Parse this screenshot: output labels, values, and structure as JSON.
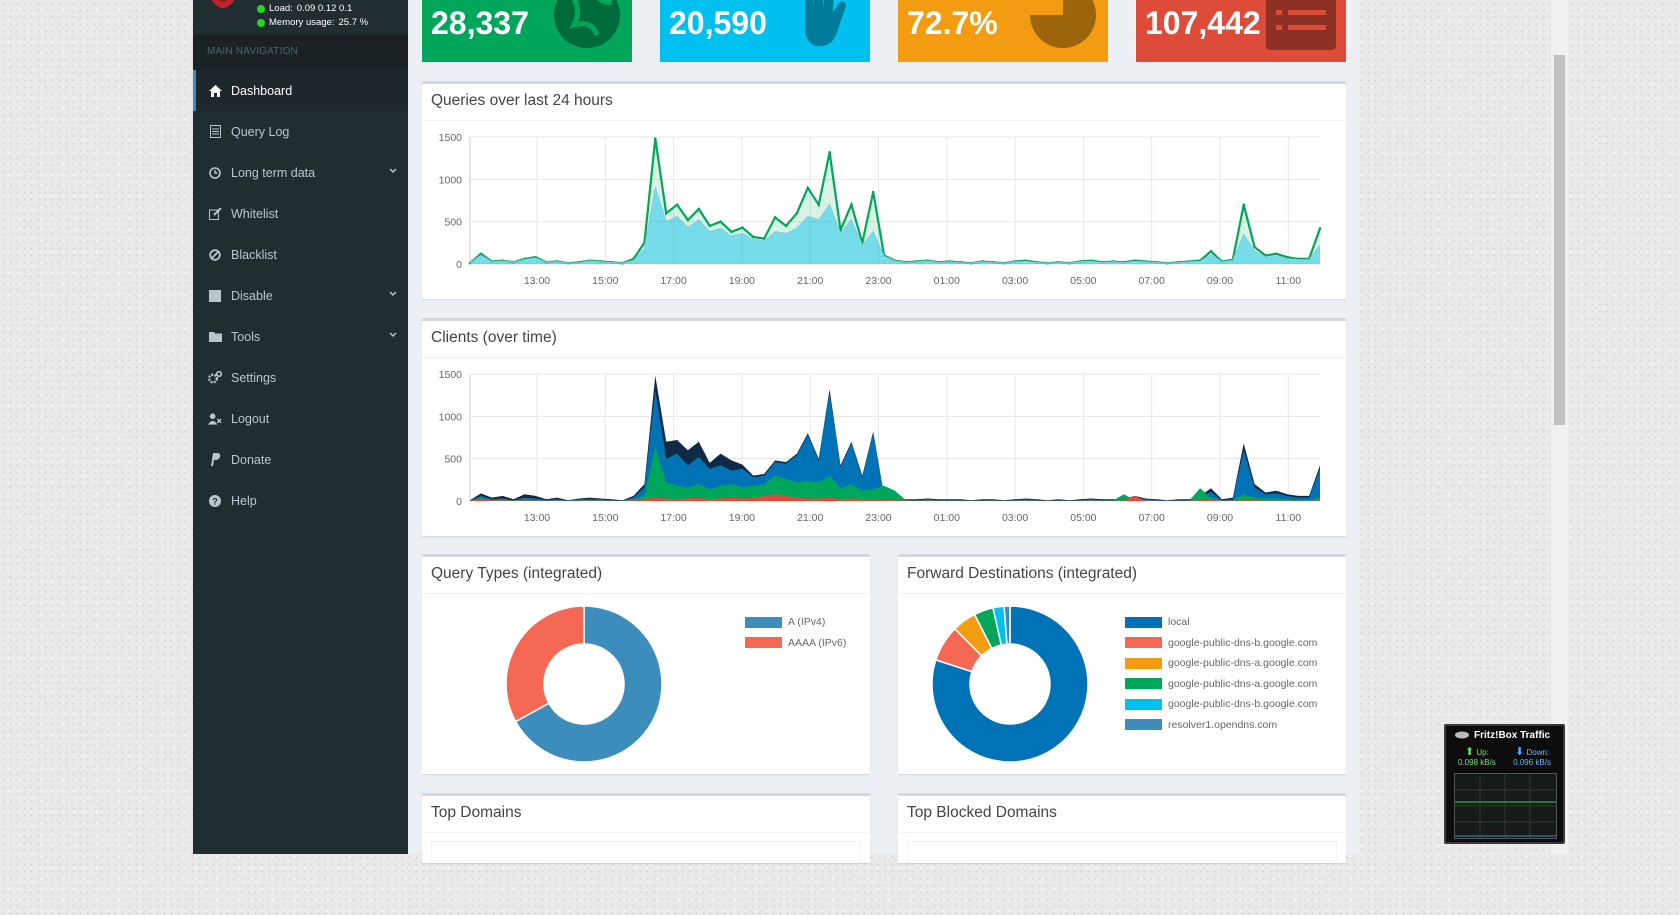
{
  "sidebar": {
    "load_label": "Load:",
    "load_values": "0.09  0.12  0.1",
    "memory_label": "Memory usage:",
    "memory_value": "25.7 %",
    "nav_header": "MAIN NAVIGATION",
    "items": [
      {
        "label": "Dashboard",
        "icon": "home-icon"
      },
      {
        "label": "Query Log",
        "icon": "file-icon"
      },
      {
        "label": "Long term data",
        "icon": "clock-icon"
      },
      {
        "label": "Whitelist",
        "icon": "edit-icon"
      },
      {
        "label": "Blacklist",
        "icon": "ban-icon"
      },
      {
        "label": "Disable",
        "icon": "stop-icon"
      },
      {
        "label": "Tools",
        "icon": "folder-icon"
      },
      {
        "label": "Settings",
        "icon": "gears-icon"
      },
      {
        "label": "Logout",
        "icon": "user-times-icon"
      },
      {
        "label": "Donate",
        "icon": "paypal-icon"
      },
      {
        "label": "Help",
        "icon": "question-icon"
      }
    ]
  },
  "stats": [
    {
      "value": "28,337",
      "color": "#00a65a",
      "icon": "globe-icon"
    },
    {
      "value": "20,590",
      "color": "#00c0ef",
      "icon": "hand-icon"
    },
    {
      "value": "72.7%",
      "color": "#f39c12",
      "icon": "pie-icon"
    },
    {
      "value": "107,442",
      "color": "#dd4b39",
      "icon": "list-icon"
    }
  ],
  "panels": {
    "queries_title": "Queries over last 24 hours",
    "clients_title": "Clients (over time)",
    "query_types_title": "Query Types (integrated)",
    "forward_title": "Forward Destinations (integrated)",
    "top_domains_title": "Top Domains",
    "top_blocked_title": "Top Blocked Domains"
  },
  "fritz": {
    "title": "Fritz!Box Traffic",
    "up_label": "Up:",
    "up_value": "0.098 kB/s",
    "down_label": "Down:",
    "down_value": "0.096 kB/s"
  },
  "chart_data": [
    {
      "type": "area",
      "ylim": [
        0,
        1500
      ],
      "yticks": [
        "0",
        "500",
        "1000",
        "1500"
      ],
      "xticks": [
        "13:00",
        "15:00",
        "17:00",
        "19:00",
        "21:00",
        "23:00",
        "01:00",
        "03:00",
        "05:00",
        "07:00",
        "09:00",
        "11:00"
      ],
      "series": [
        {
          "color": "#00a65a",
          "values": [
            10,
            120,
            30,
            40,
            20,
            60,
            80,
            20,
            30,
            10,
            20,
            40,
            30,
            20,
            10,
            60,
            250,
            1480,
            600,
            700,
            520,
            650,
            450,
            500,
            380,
            430,
            320,
            300,
            550,
            450,
            600,
            900,
            700,
            1320,
            400,
            700,
            250,
            850,
            100,
            40,
            20,
            30,
            40,
            20,
            30,
            20,
            10,
            30,
            20,
            10,
            30,
            40,
            20,
            10,
            20,
            10,
            30,
            40,
            20,
            30,
            20,
            40,
            30,
            20,
            10,
            20,
            30,
            40,
            150,
            30,
            50,
            700,
            200,
            100,
            120,
            80,
            60,
            60,
            420
          ]
        },
        {
          "color": "#7fcfe6",
          "values": [
            10,
            100,
            25,
            35,
            20,
            50,
            70,
            20,
            25,
            10,
            15,
            35,
            25,
            15,
            10,
            40,
            180,
            900,
            500,
            560,
            430,
            520,
            380,
            420,
            330,
            360,
            290,
            270,
            380,
            360,
            420,
            560,
            520,
            700,
            360,
            520,
            220,
            380,
            90,
            35,
            15,
            25,
            35,
            15,
            25,
            15,
            10,
            25,
            15,
            10,
            25,
            30,
            15,
            10,
            15,
            10,
            25,
            30,
            15,
            25,
            15,
            30,
            25,
            15,
            10,
            15,
            25,
            30,
            110,
            25,
            40,
            350,
            150,
            80,
            90,
            60,
            50,
            50,
            220
          ]
        }
      ]
    },
    {
      "type": "area",
      "ylim": [
        0,
        1500
      ],
      "yticks": [
        "0",
        "500",
        "1000",
        "1500"
      ],
      "xticks": [
        "13:00",
        "15:00",
        "17:00",
        "19:00",
        "21:00",
        "23:00",
        "01:00",
        "03:00",
        "05:00",
        "07:00",
        "09:00",
        "11:00"
      ],
      "series": [
        {
          "color": "#0e2a46",
          "values": [
            10,
            90,
            40,
            60,
            20,
            80,
            60,
            20,
            40,
            10,
            30,
            40,
            30,
            20,
            10,
            60,
            200,
            1480,
            700,
            720,
            600,
            700,
            450,
            560,
            480,
            430,
            300,
            320,
            480,
            460,
            560,
            800,
            500,
            1320,
            420,
            700,
            300,
            820,
            60,
            40,
            20,
            20,
            30,
            20,
            20,
            20,
            10,
            20,
            20,
            10,
            20,
            30,
            20,
            10,
            20,
            10,
            20,
            30,
            20,
            20,
            20,
            60,
            30,
            20,
            10,
            20,
            20,
            60,
            150,
            20,
            40,
            680,
            200,
            100,
            120,
            80,
            60,
            60,
            420
          ]
        },
        {
          "color": "#0073b7",
          "values": [
            5,
            60,
            20,
            30,
            10,
            40,
            30,
            10,
            20,
            5,
            20,
            20,
            20,
            10,
            5,
            40,
            160,
            1300,
            500,
            560,
            420,
            520,
            380,
            420,
            360,
            380,
            280,
            300,
            460,
            440,
            540,
            780,
            480,
            1280,
            400,
            680,
            280,
            800,
            40,
            20,
            10,
            10,
            20,
            10,
            10,
            10,
            5,
            10,
            10,
            5,
            10,
            20,
            10,
            5,
            10,
            5,
            10,
            20,
            10,
            10,
            10,
            40,
            20,
            10,
            5,
            10,
            10,
            40,
            110,
            10,
            20,
            600,
            160,
            80,
            90,
            60,
            40,
            40,
            380
          ]
        },
        {
          "color": "#00a65a",
          "values": [
            2,
            40,
            10,
            20,
            5,
            20,
            10,
            5,
            10,
            2,
            10,
            10,
            10,
            5,
            2,
            20,
            60,
            640,
            220,
            180,
            160,
            200,
            140,
            180,
            200,
            160,
            180,
            200,
            300,
            260,
            220,
            240,
            220,
            300,
            150,
            200,
            120,
            140,
            180,
            120,
            10,
            5,
            10,
            5,
            5,
            5,
            2,
            5,
            5,
            2,
            5,
            10,
            5,
            2,
            5,
            2,
            5,
            10,
            5,
            5,
            80,
            10,
            10,
            5,
            2,
            5,
            5,
            150,
            40,
            5,
            10,
            80,
            40,
            30,
            30,
            20,
            10,
            10,
            40
          ]
        },
        {
          "color": "#dd4b39",
          "values": [
            1,
            20,
            5,
            10,
            2,
            10,
            5,
            2,
            5,
            1,
            5,
            5,
            5,
            2,
            1,
            10,
            20,
            40,
            30,
            20,
            30,
            40,
            20,
            30,
            40,
            30,
            40,
            60,
            80,
            60,
            40,
            30,
            30,
            40,
            20,
            30,
            20,
            20,
            20,
            10,
            5,
            2,
            5,
            2,
            2,
            2,
            1,
            2,
            2,
            1,
            2,
            5,
            2,
            1,
            2,
            1,
            2,
            5,
            2,
            2,
            2,
            60,
            5,
            2,
            1,
            2,
            2,
            10,
            20,
            2,
            5,
            10,
            10,
            5,
            5,
            5,
            2,
            2,
            10
          ]
        }
      ]
    },
    {
      "type": "pie",
      "categories": [
        "A (IPv4)",
        "AAAA (IPv6)"
      ],
      "values": [
        67,
        33
      ],
      "colors": [
        "#3c8dbc",
        "#f56954"
      ]
    },
    {
      "type": "pie",
      "categories": [
        "local",
        "google-public-dns-b.google.com",
        "google-public-dns-a.google.com",
        "google-public-dns-a.google.com",
        "google-public-dns-b.google.com",
        "resolver1.opendns.com"
      ],
      "values": [
        80,
        7.5,
        5,
        4,
        2.3,
        1.2
      ],
      "colors": [
        "#0073b7",
        "#f56954",
        "#f39c12",
        "#00a65a",
        "#00c0ef",
        "#3c8dbc"
      ]
    }
  ]
}
